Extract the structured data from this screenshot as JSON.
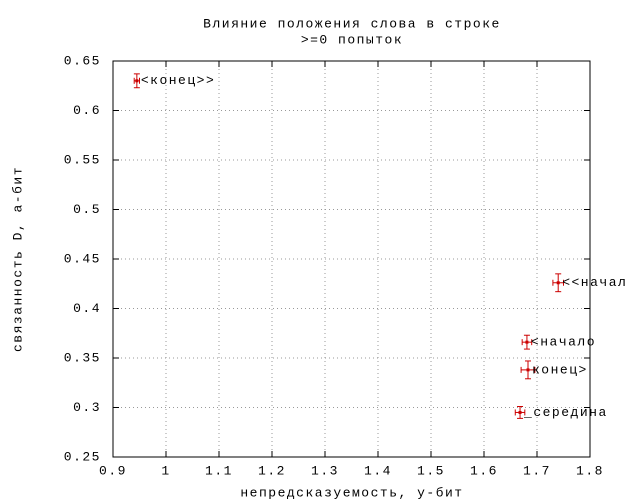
{
  "chart_data": {
    "type": "scatter",
    "title": "Влияние положения слова в строке",
    "subtitle": ">=0 попыток",
    "xlabel": "непредсказуемость, у-бит",
    "ylabel": "связанность D, а-бит",
    "xlim": [
      0.9,
      1.8
    ],
    "ylim": [
      0.25,
      0.65
    ],
    "xticks": [
      0.9,
      1,
      1.1,
      1.2,
      1.3,
      1.4,
      1.5,
      1.6,
      1.7,
      1.8
    ],
    "yticks": [
      0.25,
      0.3,
      0.35,
      0.4,
      0.45,
      0.5,
      0.55,
      0.6,
      0.65
    ],
    "grid": true,
    "series": [
      {
        "color": "#cc0000",
        "labels": [
          "<конец>>",
          "<<начало>>",
          "<начало",
          "конец>",
          "_середина"
        ],
        "x": [
          0.945,
          1.74,
          1.681,
          1.683,
          1.668
        ],
        "values": [
          0.63,
          0.426,
          0.366,
          0.338,
          0.295
        ],
        "xerr": [
          0.005,
          0.01,
          0.009,
          0.013,
          0.009
        ],
        "yerr": [
          0.007,
          0.009,
          0.007,
          0.009,
          0.006
        ]
      }
    ]
  }
}
